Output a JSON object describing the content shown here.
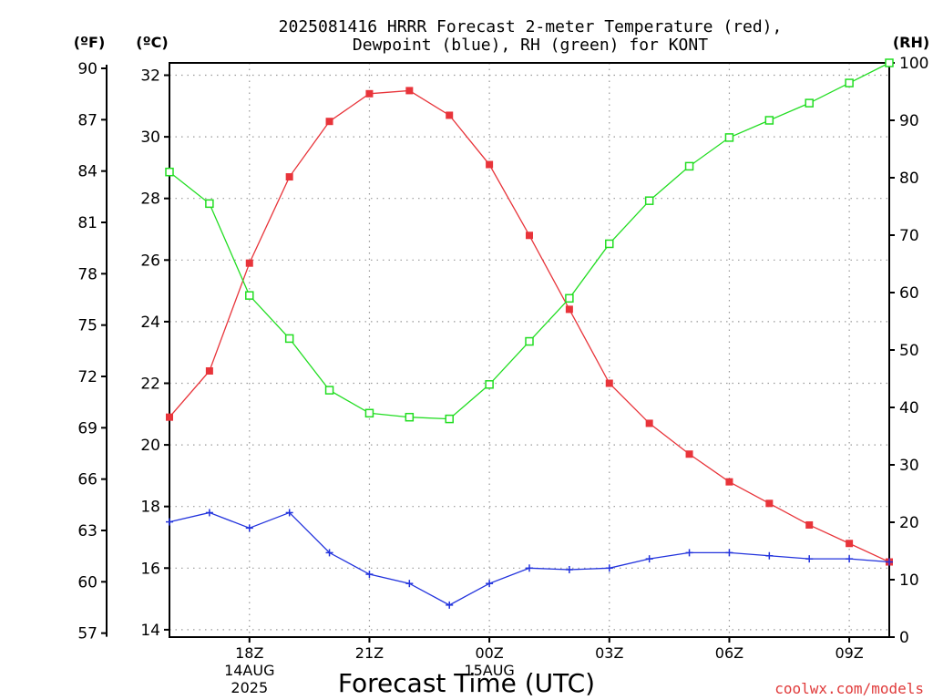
{
  "chart_data": {
    "type": "line",
    "title_line1": "2025081416 HRRR Forecast 2-meter Temperature (red),",
    "title_line2": "Dewpoint (blue), RH (green) for KONT",
    "xlabel": "Forecast Time (UTC)",
    "credit": "coolwx.com/models",
    "units": {
      "left_f": "(ºF)",
      "left_c": "(ºC)",
      "right_rh": "(RH)"
    },
    "x_hours": [
      16,
      17,
      18,
      19,
      20,
      21,
      22,
      23,
      24,
      25,
      26,
      27,
      28,
      29,
      30,
      31,
      32,
      33,
      34
    ],
    "x_ticks": [
      {
        "hour": 18,
        "lines": [
          "18Z",
          "14AUG",
          "2025"
        ]
      },
      {
        "hour": 21,
        "lines": [
          "21Z"
        ]
      },
      {
        "hour": 24,
        "lines": [
          "00Z",
          "15AUG"
        ]
      },
      {
        "hour": 27,
        "lines": [
          "03Z"
        ]
      },
      {
        "hour": 30,
        "lines": [
          "06Z"
        ]
      },
      {
        "hour": 33,
        "lines": [
          "09Z"
        ]
      }
    ],
    "xlim": [
      16,
      34
    ],
    "ylim_c": [
      13.76,
      32.4
    ],
    "ylim_rh": [
      0,
      100
    ],
    "c_ticks": [
      "14",
      "16",
      "18",
      "20",
      "22",
      "24",
      "26",
      "28",
      "30",
      "32"
    ],
    "f_ticks": [
      "57",
      "60",
      "63",
      "66",
      "69",
      "72",
      "75",
      "78",
      "81",
      "84",
      "87",
      "90"
    ],
    "rh_ticks": [
      "0",
      "10",
      "20",
      "30",
      "40",
      "50",
      "60",
      "70",
      "80",
      "90",
      "100"
    ],
    "series": [
      {
        "name": "Temperature",
        "axis": "c",
        "color": "#e8343a",
        "marker": "filled-square",
        "values": [
          20.9,
          22.4,
          25.9,
          28.7,
          30.5,
          31.4,
          31.5,
          30.7,
          29.1,
          26.8,
          24.4,
          22.0,
          20.7,
          19.7,
          18.8,
          18.1,
          17.4,
          16.8,
          16.2
        ]
      },
      {
        "name": "Dewpoint",
        "axis": "c",
        "color": "#2233dd",
        "marker": "plus",
        "values": [
          17.5,
          17.8,
          17.3,
          17.8,
          16.5,
          15.8,
          15.5,
          14.8,
          15.5,
          16.0,
          15.95,
          16.0,
          16.3,
          16.5,
          16.5,
          16.4,
          16.3,
          16.3,
          16.2
        ]
      },
      {
        "name": "RH",
        "axis": "rh",
        "color": "#22dd22",
        "marker": "open-square",
        "values": [
          81,
          75.5,
          59.5,
          52,
          43,
          39,
          38.3,
          38,
          44,
          51.5,
          59,
          68.5,
          76,
          82,
          87,
          90,
          93,
          96.5,
          100
        ]
      }
    ]
  }
}
